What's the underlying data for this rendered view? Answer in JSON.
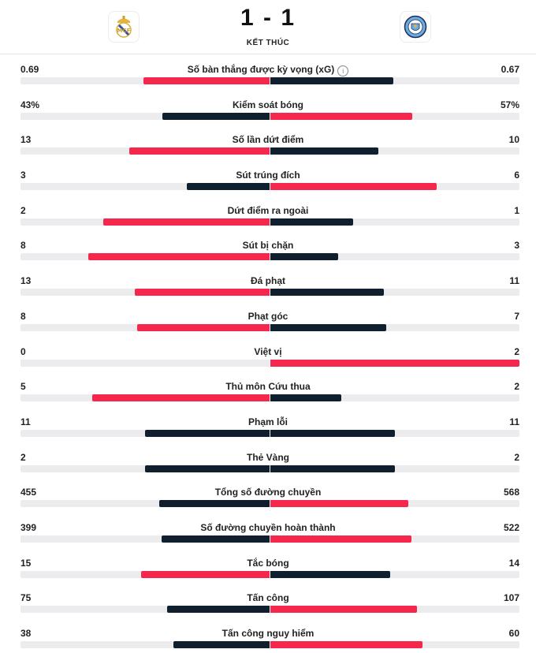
{
  "match": {
    "score": "1 - 1",
    "status": "KẾT THÚC",
    "home_crest_icon": "real-madrid-crest-icon",
    "away_crest_icon": "man-city-crest-icon"
  },
  "colors": {
    "win": "#f5274c",
    "lose": "#0f1f2e",
    "track": "#ececef"
  },
  "stats": [
    {
      "label": "Số bàn thắng được kỳ vọng (xG)",
      "home": "0.69",
      "away": "0.67",
      "home_share": 0.507,
      "info": true
    },
    {
      "label": "Kiểm soát bóng",
      "home": "43%",
      "away": "57%",
      "home_share": 0.43
    },
    {
      "label": "Số lần dứt điểm",
      "home": "13",
      "away": "10",
      "home_share": 0.565
    },
    {
      "label": "Sút trúng đích",
      "home": "3",
      "away": "6",
      "home_share": 0.333
    },
    {
      "label": "Dứt điểm ra ngoài",
      "home": "2",
      "away": "1",
      "home_share": 0.667
    },
    {
      "label": "Sút bị chặn",
      "home": "8",
      "away": "3",
      "home_share": 0.727
    },
    {
      "label": "Đá phạt",
      "home": "13",
      "away": "11",
      "home_share": 0.542
    },
    {
      "label": "Phạt góc",
      "home": "8",
      "away": "7",
      "home_share": 0.533
    },
    {
      "label": "Việt vị",
      "home": "0",
      "away": "2",
      "home_share": 0.0
    },
    {
      "label": "Thủ môn Cứu thua",
      "home": "5",
      "away": "2",
      "home_share": 0.714
    },
    {
      "label": "Phạm lỗi",
      "home": "11",
      "away": "11",
      "home_share": 0.5
    },
    {
      "label": "Thẻ Vàng",
      "home": "2",
      "away": "2",
      "home_share": 0.5
    },
    {
      "label": "Tổng số đường chuyền",
      "home": "455",
      "away": "568",
      "home_share": 0.445
    },
    {
      "label": "Số đường chuyền hoàn thành",
      "home": "399",
      "away": "522",
      "home_share": 0.433
    },
    {
      "label": "Tắc bóng",
      "home": "15",
      "away": "14",
      "home_share": 0.517
    },
    {
      "label": "Tấn công",
      "home": "75",
      "away": "107",
      "home_share": 0.412
    },
    {
      "label": "Tấn công nguy hiểm",
      "home": "38",
      "away": "60",
      "home_share": 0.388
    }
  ]
}
